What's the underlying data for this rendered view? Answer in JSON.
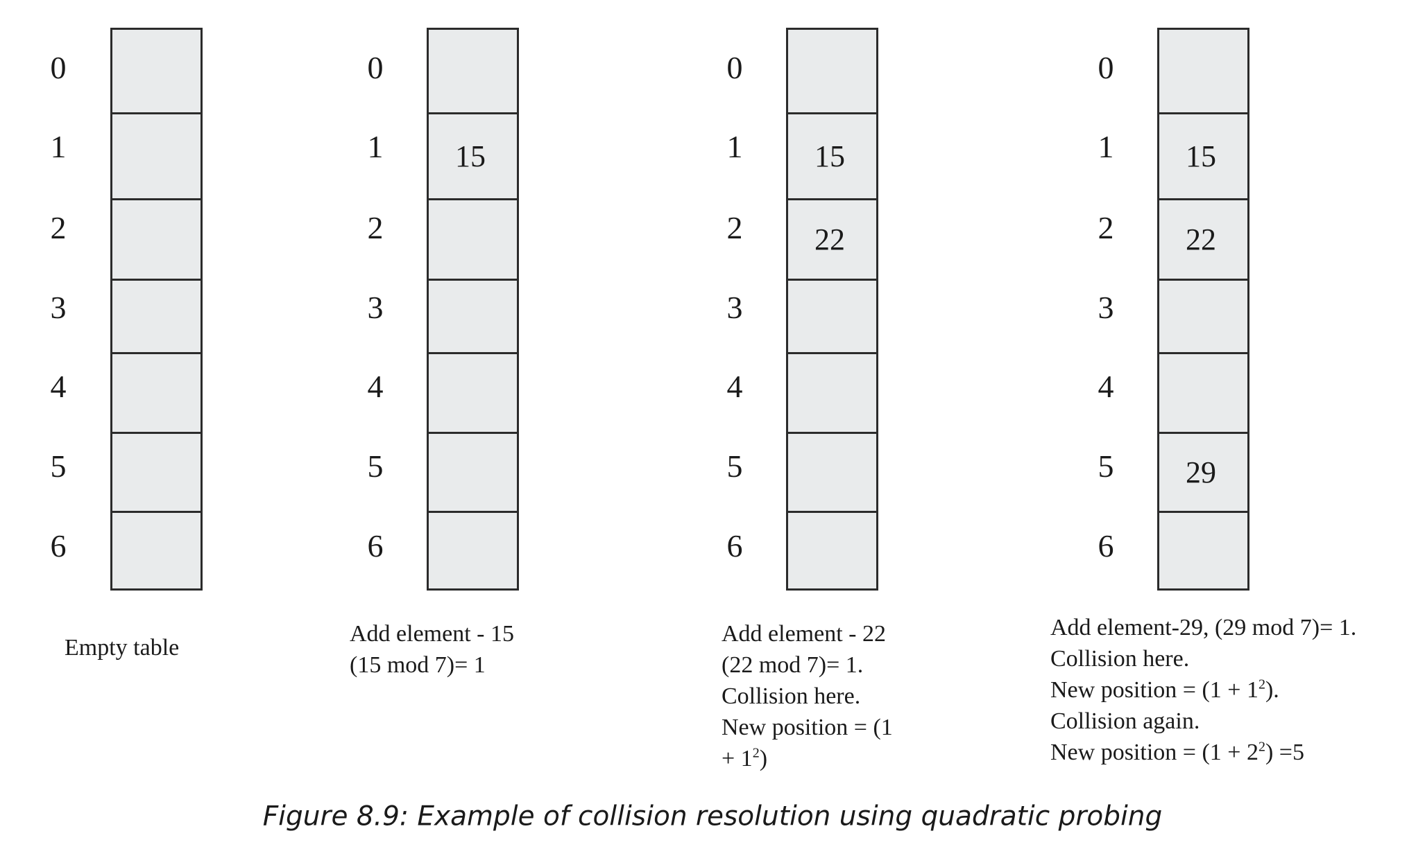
{
  "tables": [
    {
      "indices": [
        "0",
        "1",
        "2",
        "3",
        "4",
        "5",
        "6"
      ],
      "cells": [
        "",
        "",
        "",
        "",
        "",
        "",
        ""
      ],
      "caption_lines": [
        "Empty table"
      ]
    },
    {
      "indices": [
        "0",
        "1",
        "2",
        "3",
        "4",
        "5",
        "6"
      ],
      "cells": [
        "",
        "15",
        "",
        "",
        "",
        "",
        ""
      ],
      "caption_lines": [
        "Add element - 15",
        "(15 mod 7)= 1"
      ]
    },
    {
      "indices": [
        "0",
        "1",
        "2",
        "3",
        "4",
        "5",
        "6"
      ],
      "cells": [
        "",
        "15",
        "22",
        "",
        "",
        "",
        ""
      ],
      "caption_lines": [
        "Add element - 22",
        "(22 mod 7)= 1.",
        "Collision here.",
        "New position = (1",
        "+ 1²)"
      ]
    },
    {
      "indices": [
        "0",
        "1",
        "2",
        "3",
        "4",
        "5",
        "6"
      ],
      "cells": [
        "",
        "15",
        "22",
        "",
        "",
        "29",
        ""
      ],
      "caption_lines": [
        "Add element-29, (29 mod 7)= 1.",
        "Collision here.",
        "New position = (1 + 1²).",
        "Collision again.",
        "New position = (1 + 2²) =5"
      ]
    }
  ],
  "figure_caption": "Figure 8.9: Example of collision resolution using quadratic probing"
}
